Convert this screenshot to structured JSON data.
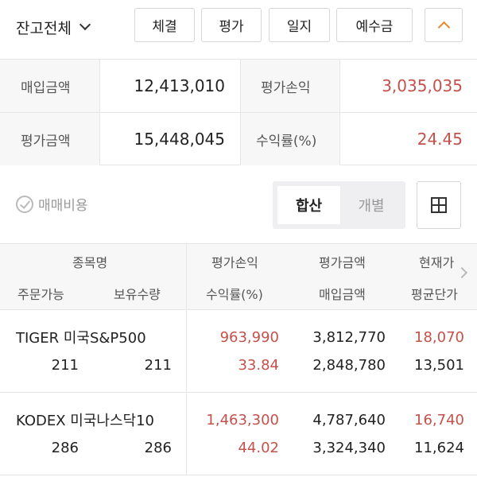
{
  "toolbar": {
    "account_label": "잔고전체",
    "buttons": [
      "체결",
      "평가",
      "일지",
      "예수금"
    ]
  },
  "summary": {
    "purchase_label": "매입금액",
    "purchase_value": "12,413,010",
    "eval_pl_label": "평가손익",
    "eval_pl_value": "3,035,035",
    "eval_amount_label": "평가금액",
    "eval_amount_value": "15,448,045",
    "return_label": "수익률(%)",
    "return_value": "24.45"
  },
  "controls": {
    "fee_label": "매매비용",
    "seg_combined": "합산",
    "seg_individual": "개별"
  },
  "table": {
    "headers": {
      "name": "종목명",
      "orderable": "주문가능",
      "holding": "보유수량",
      "eval_pl": "평가손익",
      "return": "수익률(%)",
      "eval_amount": "평가금액",
      "purchase": "매입금액",
      "price": "현재가",
      "avg_price": "평균단가"
    },
    "rows": [
      {
        "name": "TIGER 미국S&P500",
        "orderable": "211",
        "holding": "211",
        "eval_pl": "963,990",
        "return": "33.84",
        "eval_amount": "3,812,770",
        "purchase": "2,848,780",
        "price": "18,070",
        "avg_price": "13,501"
      },
      {
        "name": "KODEX 미국나스닥10",
        "orderable": "286",
        "holding": "286",
        "eval_pl": "1,463,300",
        "return": "44.02",
        "eval_amount": "4,787,640",
        "purchase": "3,324,340",
        "price": "16,740",
        "avg_price": "11,624"
      }
    ]
  },
  "colors": {
    "profit": "#c4514b",
    "accent": "#e8862a"
  },
  "icons": {
    "account_dropdown": "chevron-down-icon",
    "collapse": "chevron-up-icon",
    "fee_check": "check-circle-icon",
    "grid": "grid-icon",
    "scroll": "chevron-right-icon"
  }
}
